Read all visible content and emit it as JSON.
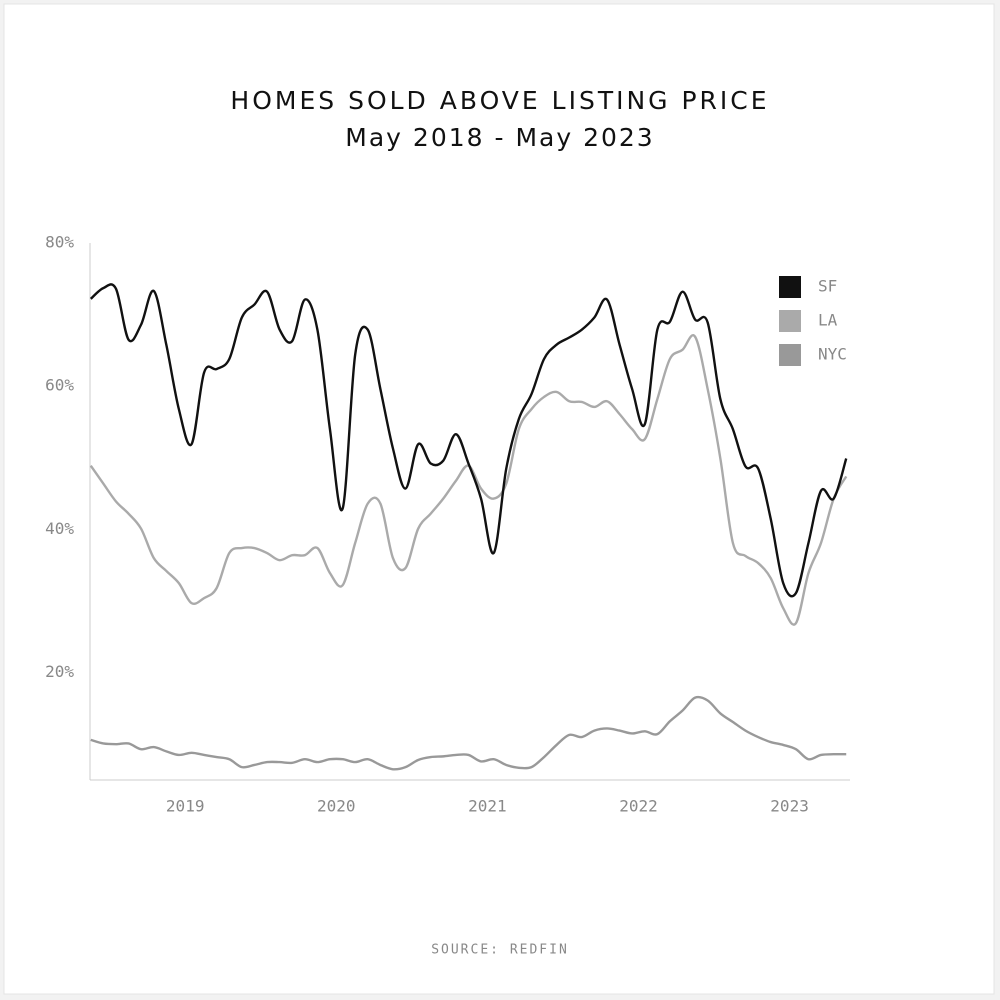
{
  "chart_data": {
    "type": "line",
    "title": "HOMES SOLD ABOVE LISTING PRICE",
    "subtitle": "May 2018 - May 2023",
    "source": "SOURCE: REDFIN",
    "x": [
      2018.375,
      2018.458,
      2018.542,
      2018.625,
      2018.708,
      2018.792,
      2018.875,
      2018.958,
      2019.042,
      2019.125,
      2019.208,
      2019.292,
      2019.375,
      2019.458,
      2019.542,
      2019.625,
      2019.708,
      2019.792,
      2019.875,
      2019.958,
      2020.042,
      2020.125,
      2020.208,
      2020.292,
      2020.375,
      2020.458,
      2020.542,
      2020.625,
      2020.708,
      2020.792,
      2020.875,
      2020.958,
      2021.042,
      2021.125,
      2021.208,
      2021.292,
      2021.375,
      2021.458,
      2021.542,
      2021.625,
      2021.708,
      2021.792,
      2021.875,
      2021.958,
      2022.042,
      2022.125,
      2022.208,
      2022.292,
      2022.375,
      2022.458,
      2022.542,
      2022.625,
      2022.708,
      2022.792,
      2022.875,
      2022.958,
      2023.042,
      2023.125,
      2023.208,
      2023.292,
      2023.375
    ],
    "series": [
      {
        "name": "SF",
        "color": "#111111",
        "values": [
          72.2,
          73.7,
          73.6,
          66.5,
          68.6,
          73.3,
          65.8,
          56.8,
          51.9,
          61.9,
          62.4,
          63.8,
          69.6,
          71.4,
          73.2,
          67.9,
          66.3,
          72.1,
          67.9,
          54,
          42.9,
          64.4,
          67.9,
          59.6,
          51.3,
          45.7,
          51.9,
          49.2,
          49.6,
          53.3,
          49.2,
          44.3,
          36.7,
          48.5,
          55.4,
          58.9,
          63.8,
          65.8,
          66.8,
          67.9,
          69.6,
          72.1,
          65.8,
          59.6,
          54.7,
          67.9,
          69,
          73.2,
          69.3,
          68.9,
          58.2,
          54,
          48.8,
          48.5,
          41.5,
          32.5,
          31.1,
          38.1,
          45.4,
          44.3,
          49.9
        ]
      },
      {
        "name": "LA",
        "color": "#aaaaaa",
        "values": [
          48.9,
          46.4,
          43.9,
          42.2,
          40.1,
          36,
          34.2,
          32.5,
          29.7,
          30.4,
          31.8,
          36.7,
          37.4,
          37.4,
          36.7,
          35.7,
          36.4,
          36.4,
          37.4,
          33.9,
          32.2,
          38.1,
          43.6,
          43.6,
          36,
          34.6,
          40.1,
          42.2,
          44.3,
          46.8,
          48.9,
          45.7,
          44.3,
          46.4,
          54,
          56.8,
          58.5,
          59.2,
          57.9,
          57.8,
          57.1,
          57.9,
          56.1,
          54,
          52.6,
          58.2,
          63.8,
          65.1,
          66.9,
          59.6,
          49.9,
          38.1,
          36.3,
          35.3,
          33.2,
          29,
          26.9,
          33.9,
          38.1,
          44.3,
          47.4
        ]
      },
      {
        "name": "NYC",
        "color": "#999999",
        "values": [
          10.6,
          10.1,
          10,
          10.1,
          9.3,
          9.6,
          9,
          8.5,
          8.8,
          8.5,
          8.2,
          7.9,
          6.8,
          7.1,
          7.5,
          7.5,
          7.4,
          7.9,
          7.5,
          7.9,
          7.9,
          7.5,
          7.9,
          7.1,
          6.5,
          6.8,
          7.8,
          8.2,
          8.3,
          8.5,
          8.5,
          7.6,
          7.9,
          7.1,
          6.7,
          6.8,
          8.2,
          9.9,
          11.3,
          11,
          11.9,
          12.2,
          11.9,
          11.5,
          11.8,
          11.4,
          13.2,
          14.7,
          16.5,
          16.1,
          14.3,
          13.1,
          11.9,
          11,
          10.3,
          9.9,
          9.3,
          7.9,
          8.5,
          8.6,
          8.6
        ]
      }
    ],
    "xlim": [
      2018.37,
      2023.4
    ],
    "xticks": [
      2019,
      2020,
      2021,
      2022,
      2023
    ],
    "ylim": [
      5,
      80
    ],
    "yticks": [
      {
        "value": 20,
        "label": "20%"
      },
      {
        "value": 40,
        "label": "40%"
      },
      {
        "value": 60,
        "label": "60%"
      },
      {
        "value": 80,
        "label": "80%"
      }
    ],
    "grid": false,
    "legend": "upper right"
  }
}
